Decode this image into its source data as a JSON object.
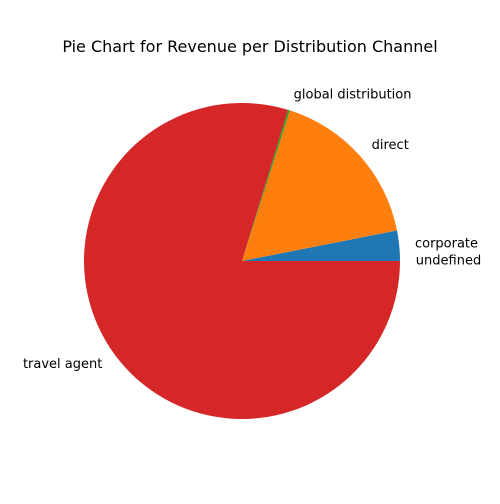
{
  "chart_data": {
    "type": "pie",
    "title": "Pie Chart for Revenue per Distribution Channel",
    "slices": [
      {
        "label": "corporate",
        "value": 3.1,
        "color": "#1f77b4"
      },
      {
        "label": "direct",
        "value": 17.0,
        "color": "#ff7f0e"
      },
      {
        "label": "global distribution",
        "value": 0.2,
        "color": "#2ca02c"
      },
      {
        "label": "travel agent",
        "value": 79.7,
        "color": "#d62728"
      },
      {
        "label": "undefined",
        "value": 0.0,
        "color": "#9467bd"
      }
    ],
    "start_angle": "0 degrees (3 o'clock), counterclockwise"
  }
}
